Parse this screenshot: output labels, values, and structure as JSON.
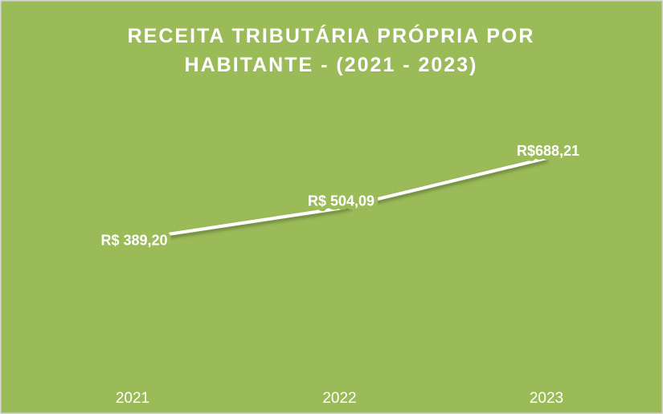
{
  "chart_data": {
    "type": "line",
    "title": "RECEITA TRIBUTÁRIA PRÓPRIA POR HABITANTE - (2021 - 2023)",
    "categories": [
      "2021",
      "2022",
      "2023"
    ],
    "values": [
      389.2,
      504.09,
      688.21
    ],
    "value_labels": [
      "R$ 389,20",
      "R$ 504,09",
      "R$688,21"
    ],
    "color": "#ffffff",
    "ylim": [
      -100,
      900
    ]
  }
}
